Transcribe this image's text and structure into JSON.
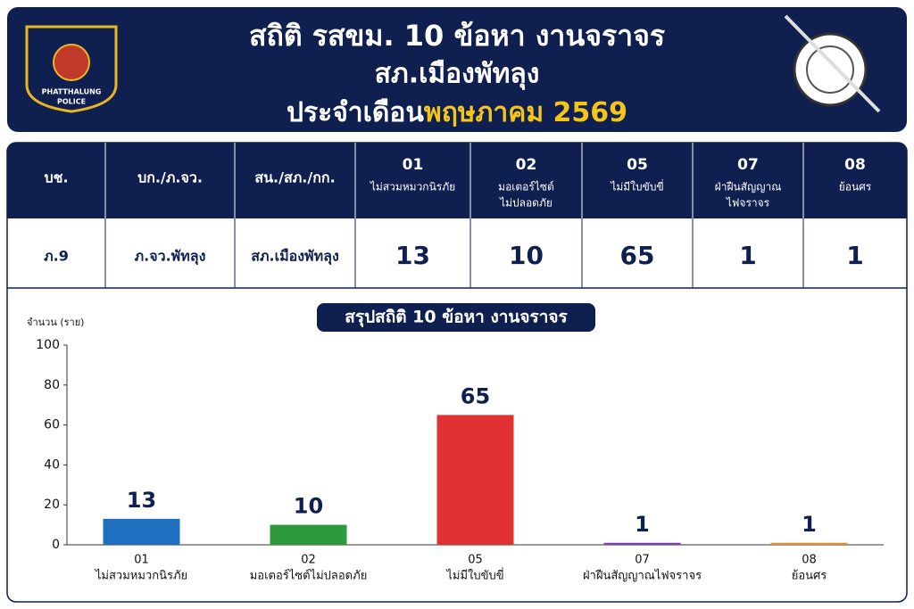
{
  "header": {
    "title": "สถิติ รสขม. 10 ข้อหา งานจราจร",
    "subtitle": "สภ.เมืองพัทลุง",
    "period_prefix": "ประจำเดือน",
    "period": "พฤษภาคม 2569",
    "badge": [
      "PHATTHALUNG",
      "POLICE"
    ]
  },
  "table": {
    "columns": [
      "บช.",
      "บก./ภ.จว.",
      "สน./สภ./กก.",
      {
        "code": "01",
        "label": [
          "ไม่สวมหมวกนิรภัย"
        ]
      },
      {
        "code": "02",
        "label": [
          "มอเตอร์ไซต์",
          "ไม่ปลอดภัย"
        ]
      },
      {
        "code": "05",
        "label": [
          "ไม่มีใบขับขี่"
        ]
      },
      {
        "code": "07",
        "label": [
          "ฝ่าฝืนสัญญาณ",
          "ไฟจราจร"
        ]
      },
      {
        "code": "08",
        "label": [
          "ย้อนศร"
        ]
      }
    ],
    "rows": [
      [
        "ภ.9",
        "ภ.จว.พัทลุง",
        "สภ.เมืองพัทลุง",
        13,
        10,
        65,
        1,
        1
      ]
    ]
  },
  "chart_data": {
    "type": "bar",
    "title": "สรุปสถิติ 10 ข้อหา งานจราจร",
    "y_label": "จำนวน (ราย)",
    "categories": [
      "01",
      "02",
      "05",
      "07",
      "08"
    ],
    "category_names": [
      "ไม่สวมหมวกนิรภัย",
      "มอเตอร์ไซต์ไม่ปลอดภัย",
      "ไม่มีใบขับขี่",
      "ฝ่าฝืนสัญญาณไฟจราจร",
      "ย้อนศร"
    ],
    "values": [
      13,
      10,
      65,
      1,
      1
    ],
    "colors": [
      "#1f6fc0",
      "#2e9a3e",
      "#e03232",
      "#7b3fbf",
      "#f08a24"
    ],
    "ylim": [
      0,
      100
    ],
    "yticks": [
      0,
      20,
      40,
      60,
      80,
      100
    ],
    "grid": false
  }
}
